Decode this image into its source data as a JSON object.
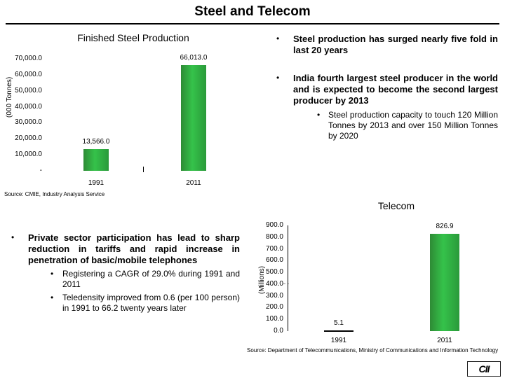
{
  "title": "Steel and Telecom",
  "steel_chart": {
    "title": "Finished Steel Production",
    "ylabel": "(000 Tonnes)",
    "yticks": [
      "70,000.0",
      "60,000.0",
      "50,000.0",
      "40,000.0",
      "30,000.0",
      "20,000.0",
      "10,000.0",
      "-"
    ],
    "categories": [
      "1991",
      "2011"
    ],
    "value_labels": [
      "13,566.0",
      "66,013.0"
    ],
    "source": "Source: CMIE, Industry Analysis Service"
  },
  "telecom_chart": {
    "title": "Telecom",
    "ylabel": "(Millions)",
    "yticks": [
      "900.0",
      "800.0",
      "700.0",
      "600.0",
      "500.0",
      "400.0",
      "300.0",
      "200.0",
      "100.0",
      "0.0"
    ],
    "categories": [
      "1991",
      "2011"
    ],
    "value_labels": [
      "5.1",
      "826.9"
    ],
    "source": "Source: Department of Telecommunications, Ministry of Communications and Information Technology"
  },
  "chart_data": [
    {
      "type": "bar",
      "title": "Finished Steel Production",
      "ylabel": "(000 Tonnes)",
      "categories": [
        "1991",
        "2011"
      ],
      "values": [
        13566.0,
        66013.0
      ],
      "ylim": [
        0,
        70000
      ],
      "grid": false,
      "color": "#2fa843"
    },
    {
      "type": "bar",
      "title": "Telecom",
      "ylabel": "(Millions)",
      "categories": [
        "1991",
        "2011"
      ],
      "values": [
        5.1,
        826.9
      ],
      "ylim": [
        0,
        900
      ],
      "grid": false,
      "color": "#2fa843"
    }
  ],
  "steel_bullets": {
    "b1": "Steel production has surged nearly five fold in last 20 years",
    "b2": "India fourth largest steel producer in the world and is expected to become the second largest producer by 2013",
    "b2_sub": "Steel production capacity to touch 120 Million Tonnes by 2013 and over 150 Million Tonnes by 2020"
  },
  "telecom_bullets": {
    "b1": "Private sector participation has lead to sharp reduction in tariffs and rapid increase in penetration of basic/mobile telephones",
    "sub1": "Registering a CAGR of 29.0% during 1991 and 2011",
    "sub2": "Teledensity improved from 0.6 (per 100 person) in 1991 to 66.2 twenty years later"
  },
  "bullet_glyph": "•",
  "logo_text": "CII"
}
